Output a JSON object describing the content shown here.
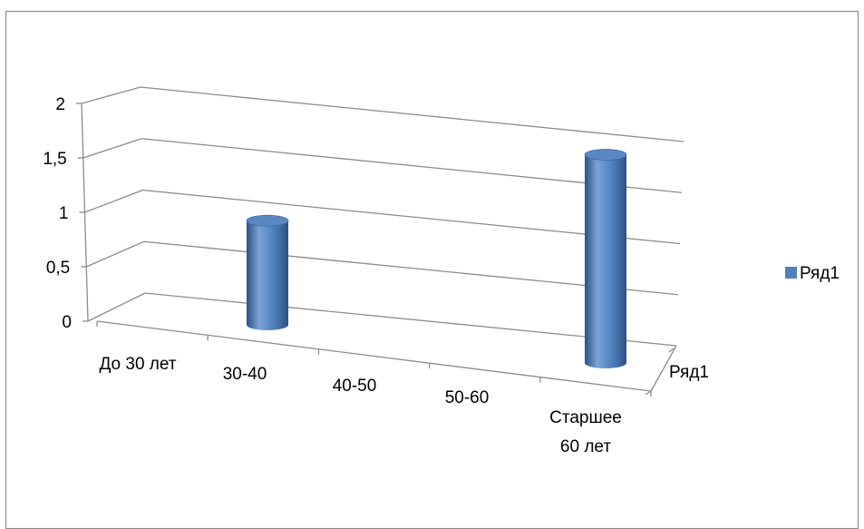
{
  "chart_data": {
    "type": "bar",
    "style": "3d-cylinder",
    "categories": [
      "До 30 лет",
      "30-40",
      "40-50",
      "50-60",
      "Старшее 60 лет"
    ],
    "category_label_lines": [
      [
        "До 30 лет"
      ],
      [
        "30-40"
      ],
      [
        "40-50"
      ],
      [
        "50-60"
      ],
      [
        "Старшее",
        "60 лет"
      ]
    ],
    "series": [
      {
        "name": "Ряд1",
        "values": [
          null,
          1,
          null,
          null,
          2
        ]
      }
    ],
    "y_ticks": [
      "0",
      "0,5",
      "1",
      "1,5",
      "2"
    ],
    "ylim": [
      0,
      2
    ],
    "depth_axis_label": "Ряд1",
    "legend": {
      "position": "right",
      "entries": [
        "Ряд1"
      ]
    },
    "grid": true,
    "colors": {
      "bar_body": "#4f81bd",
      "bar_dark": "#2c5285",
      "bar_light": "#7aa3d6",
      "bar_top": "#5a88c3",
      "grid": "#8c8c8c",
      "border": "#8c8c8c",
      "legend_swatch": "#4f81bd"
    }
  }
}
